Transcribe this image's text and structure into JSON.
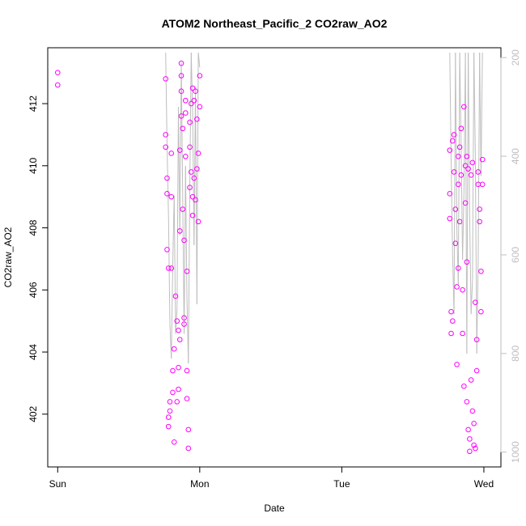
{
  "chart_data": {
    "type": "scatter",
    "title": "ATOM2 Northeast_Pacific_2 CO2raw_AO2",
    "xlabel": "Date",
    "ylabel": "CO2raw_AO2",
    "x_tick_labels": [
      "Sun",
      "Mon",
      "Tue",
      "Wed"
    ],
    "x_range_days": [
      -0.07,
      3.12
    ],
    "ylim": [
      400.3,
      413.8
    ],
    "y_ticks": [
      402,
      404,
      406,
      408,
      410,
      412
    ],
    "y2_ticks": [
      200,
      400,
      600,
      800,
      1000
    ],
    "y2lim": [
      1030,
      180
    ],
    "grid": false,
    "colors": {
      "points": "#ff00ff",
      "line": "#bebebe",
      "axis": "#000000",
      "axis_right": "#bebebe"
    },
    "series": [
      {
        "type": "scatter",
        "x": [
          0.0,
          0.0,
          0.76,
          0.76,
          0.76,
          0.77,
          0.77,
          0.77,
          0.78,
          0.78,
          0.78,
          0.79,
          0.79,
          0.8,
          0.8,
          0.8,
          0.81,
          0.81,
          0.82,
          0.82,
          0.83,
          0.84,
          0.84,
          0.85,
          0.85,
          0.85,
          0.86,
          0.86,
          0.86,
          0.87,
          0.87,
          0.87,
          0.87,
          0.88,
          0.88,
          0.89,
          0.89,
          0.89,
          0.9,
          0.9,
          0.9,
          0.91,
          0.91,
          0.91,
          0.92,
          0.92,
          0.93,
          0.93,
          0.93,
          0.94,
          0.94,
          0.95,
          0.95,
          0.95,
          0.96,
          0.96,
          0.97,
          0.97,
          0.98,
          0.98,
          0.99,
          0.99,
          1.0,
          1.0,
          2.76,
          2.76,
          2.76,
          2.77,
          2.77,
          2.78,
          2.78,
          2.79,
          2.79,
          2.8,
          2.8,
          2.81,
          2.81,
          2.82,
          2.82,
          2.82,
          2.83,
          2.83,
          2.84,
          2.84,
          2.85,
          2.85,
          2.86,
          2.86,
          2.87,
          2.87,
          2.88,
          2.88,
          2.88,
          2.89,
          2.89,
          2.9,
          2.9,
          2.91,
          2.91,
          2.92,
          2.92,
          2.93,
          2.93,
          2.94,
          2.94,
          2.95,
          2.95,
          2.96,
          2.96,
          2.97,
          2.97,
          2.98,
          2.98,
          2.99,
          2.99
        ],
        "y": [
          413.0,
          412.6,
          412.8,
          411.0,
          410.6,
          409.6,
          409.1,
          407.3,
          406.7,
          401.6,
          401.9,
          402.4,
          402.1,
          410.4,
          409.0,
          406.7,
          403.4,
          402.7,
          401.1,
          404.1,
          405.8,
          405.0,
          402.4,
          404.7,
          403.5,
          402.8,
          404.4,
          407.9,
          410.5,
          411.6,
          412.4,
          412.9,
          413.3,
          411.2,
          408.6,
          407.6,
          405.1,
          404.9,
          411.7,
          412.1,
          410.3,
          406.6,
          403.4,
          402.5,
          401.5,
          400.9,
          409.3,
          411.4,
          410.6,
          409.8,
          412.0,
          409.0,
          408.4,
          412.5,
          412.1,
          409.6,
          408.9,
          412.4,
          411.5,
          409.9,
          410.4,
          408.2,
          412.9,
          411.9,
          410.5,
          409.1,
          408.3,
          405.3,
          404.6,
          405.0,
          410.8,
          411.0,
          409.8,
          408.6,
          407.5,
          406.1,
          403.6,
          410.3,
          409.4,
          406.7,
          408.2,
          410.6,
          411.2,
          409.7,
          406.0,
          404.6,
          402.9,
          411.9,
          410.0,
          408.8,
          406.9,
          402.4,
          410.3,
          409.9,
          401.5,
          401.2,
          400.8,
          403.1,
          409.7,
          410.1,
          402.1,
          401.7,
          401.0,
          400.9,
          405.6,
          404.4,
          403.4,
          409.8,
          409.4,
          408.6,
          408.2,
          406.6,
          405.3,
          409.4,
          410.2
        ]
      },
      {
        "type": "line",
        "x": [
          0.76,
          0.77,
          0.78,
          0.79,
          0.8,
          0.81,
          0.82,
          0.83,
          0.84,
          0.85,
          0.86,
          0.87,
          0.88,
          0.89,
          0.9,
          0.91,
          0.92,
          0.93,
          0.94,
          0.95,
          0.96,
          0.97,
          0.98,
          0.99,
          1.0,
          2.76,
          2.77,
          2.78,
          2.79,
          2.8,
          2.81,
          2.82,
          2.83,
          2.84,
          2.85,
          2.86,
          2.87,
          2.88,
          2.89,
          2.9,
          2.91,
          2.92,
          2.93,
          2.94,
          2.95,
          2.96,
          2.97,
          2.98,
          2.99
        ],
        "y": [
          190,
          380,
          520,
          740,
          810,
          620,
          480,
          760,
          710,
          300,
          560,
          210,
          480,
          760,
          420,
          690,
          820,
          460,
          190,
          310,
          580,
          260,
          700,
          190,
          220,
          190,
          420,
          600,
          720,
          190,
          550,
          660,
          190,
          380,
          610,
          470,
          190,
          800,
          190,
          520,
          720,
          650,
          190,
          400,
          800,
          610,
          190,
          440,
          190
        ]
      }
    ]
  }
}
